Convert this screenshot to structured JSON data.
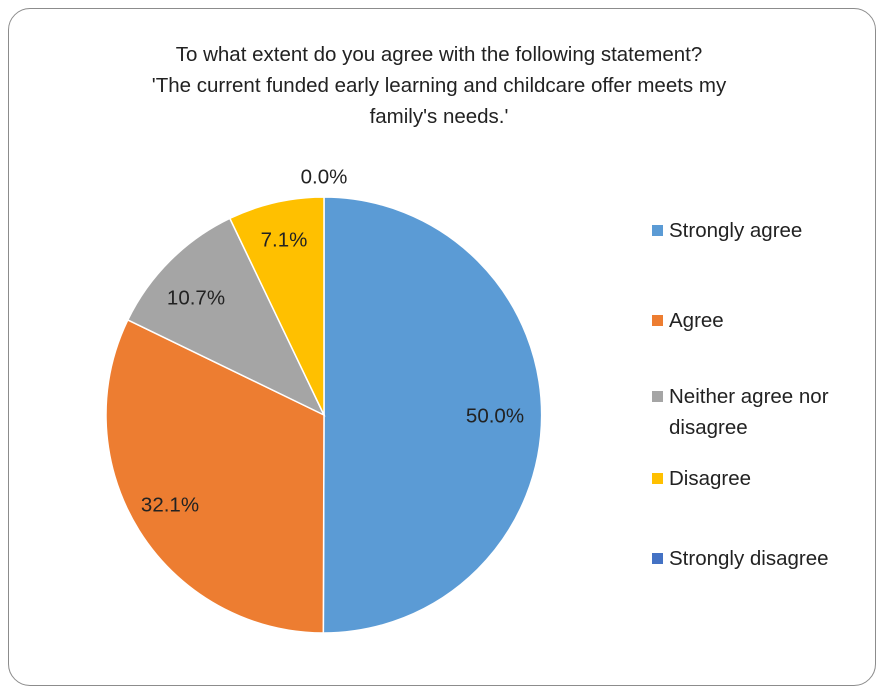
{
  "chart_data": {
    "type": "pie",
    "title_lines": [
      "To what extent do you agree with the following statement?",
      "'The current funded early learning and childcare offer meets my",
      "family's needs.'"
    ],
    "categories": [
      "Strongly agree",
      "Agree",
      "Neither agree nor disagree",
      "Disagree",
      "Strongly disagree"
    ],
    "values": [
      50.0,
      32.1,
      10.7,
      7.1,
      0.0
    ],
    "data_labels": [
      "50.0%",
      "32.1%",
      "10.7%",
      "7.1%",
      "0.0%"
    ],
    "colors": [
      "#5b9bd5",
      "#ed7d31",
      "#a5a5a5",
      "#ffc000",
      "#4472c4"
    ],
    "legend_position": "right",
    "start_angle": "12 o'clock, clockwise"
  }
}
